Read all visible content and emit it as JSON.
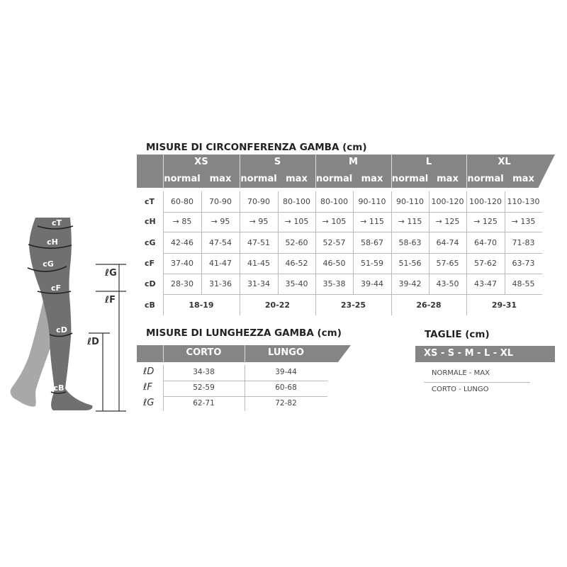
{
  "circumference": {
    "title": "MISURE DI CIRCONFERENZA GAMBA (cm)",
    "sizes": [
      "XS",
      "S",
      "M",
      "L",
      "XL"
    ],
    "sub_labels": [
      "normal",
      "max"
    ],
    "rows": [
      {
        "label": "cT",
        "values": [
          "60-80",
          "70-90",
          "70-90",
          "80-100",
          "80-100",
          "90-110",
          "90-110",
          "100-120",
          "100-120",
          "110-130"
        ]
      },
      {
        "label": "cH",
        "values": [
          "→ 85",
          "→ 95",
          "→ 95",
          "→ 105",
          "→ 105",
          "→ 115",
          "→ 115",
          "→ 125",
          "→ 125",
          "→ 135"
        ]
      },
      {
        "label": "cG",
        "values": [
          "42-46",
          "47-54",
          "47-51",
          "52-60",
          "52-57",
          "58-67",
          "58-63",
          "64-74",
          "64-70",
          "71-83"
        ]
      },
      {
        "label": "cF",
        "values": [
          "37-40",
          "41-47",
          "41-45",
          "46-52",
          "46-50",
          "51-59",
          "51-56",
          "57-65",
          "57-62",
          "63-73"
        ]
      },
      {
        "label": "cD",
        "values": [
          "28-30",
          "31-36",
          "31-34",
          "35-40",
          "35-38",
          "39-44",
          "39-42",
          "43-50",
          "43-47",
          "48-55"
        ]
      }
    ],
    "cB": {
      "label": "cB",
      "values": [
        "18-19",
        "20-22",
        "23-25",
        "26-28",
        "29-31"
      ]
    }
  },
  "length": {
    "title": "MISURE DI LUNGHEZZA GAMBA (cm)",
    "columns": [
      "CORTO",
      "LUNGO"
    ],
    "rows": [
      {
        "label": "ℓD",
        "values": [
          "34-38",
          "39-44"
        ]
      },
      {
        "label": "ℓF",
        "values": [
          "52-59",
          "60-68"
        ]
      },
      {
        "label": "ℓG",
        "values": [
          "62-71",
          "72-82"
        ]
      }
    ]
  },
  "sizes_box": {
    "title": "TAGLIE (cm)",
    "header": "XS - S - M - L - XL",
    "lines": [
      "NORMALE - MAX",
      "CORTO - LUNGO"
    ]
  },
  "diagram": {
    "circ_labels": [
      "cT",
      "cH",
      "cG",
      "cF",
      "cD",
      "cB"
    ],
    "length_labels": [
      "ℓG",
      "ℓF",
      "ℓD"
    ]
  },
  "colors": {
    "header_band": "#858585",
    "leg_front": "#707070",
    "leg_back": "#a8a8a8"
  }
}
